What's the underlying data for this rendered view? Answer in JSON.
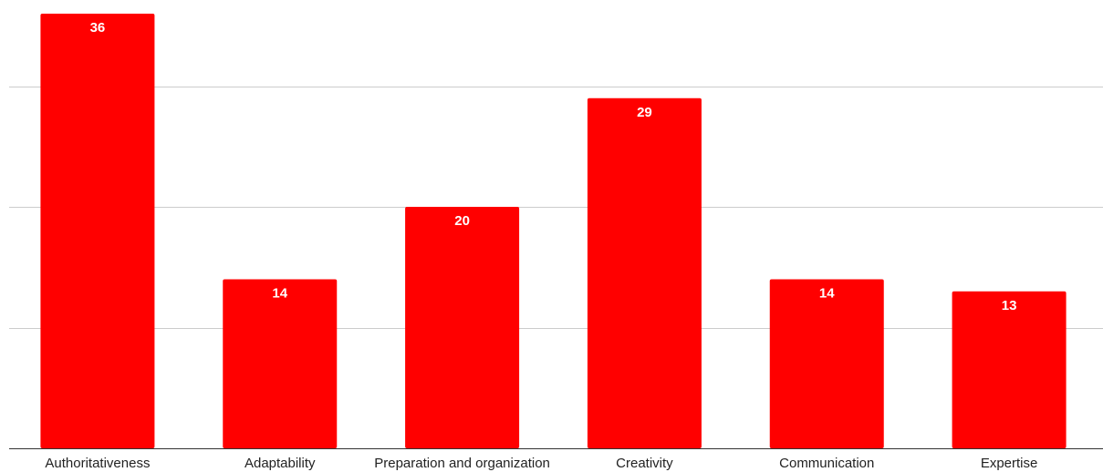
{
  "chart_data": {
    "type": "bar",
    "title": "",
    "xlabel": "",
    "ylabel": "",
    "categories": [
      "Authoritativeness",
      "Adaptability",
      "Preparation and organization",
      "Creativity",
      "Communication",
      "Expertise"
    ],
    "values": [
      36,
      14,
      20,
      29,
      14,
      13
    ],
    "ylim": [
      0,
      36
    ],
    "gridlines": [
      10,
      20,
      30
    ],
    "grid": true,
    "legend": "none",
    "colors": {
      "bar": "#ff0000",
      "grid": "#cccccc",
      "axis": "#333333",
      "data_label": "#ffffff"
    }
  }
}
